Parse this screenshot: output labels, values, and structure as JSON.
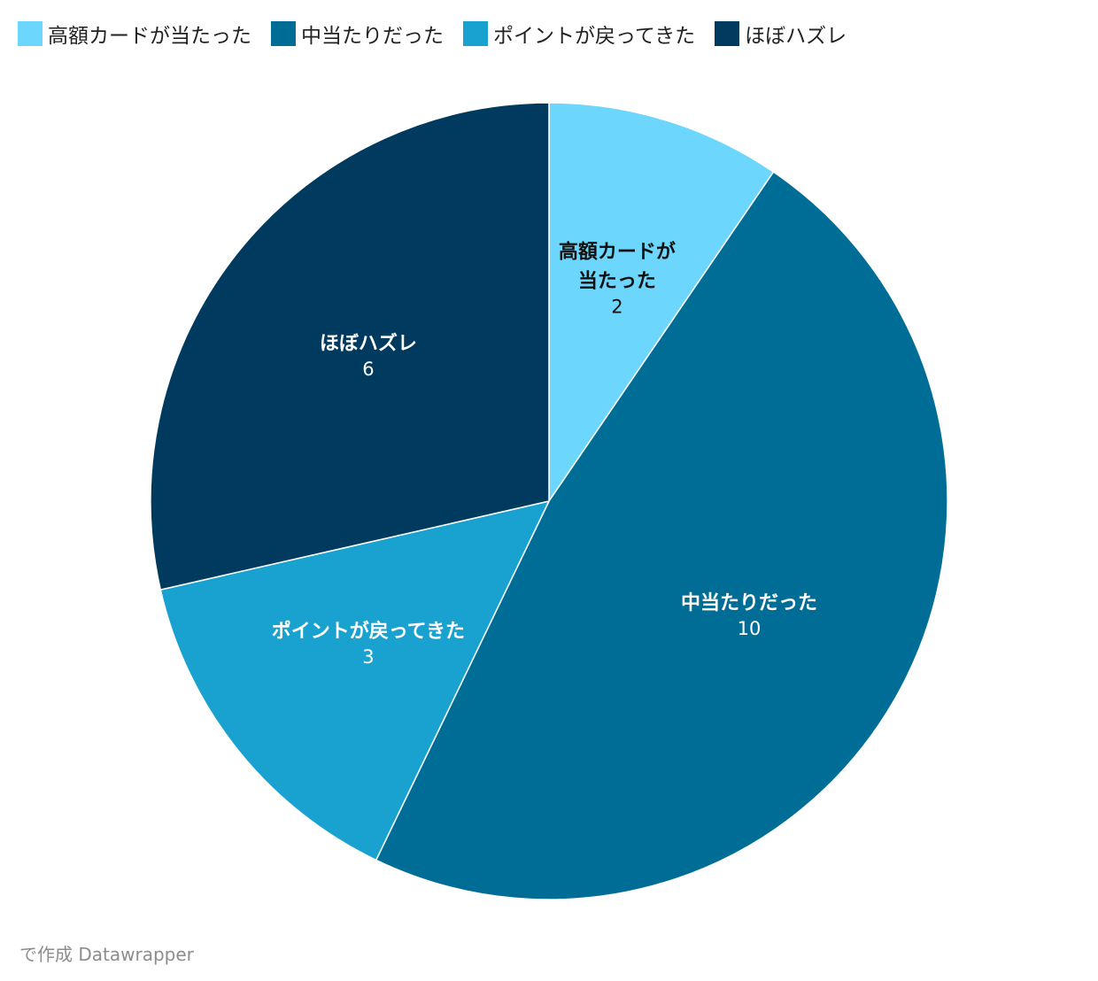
{
  "chart_data": {
    "type": "pie",
    "categories": [
      "高額カードが当たった",
      "中当たりだった",
      "ポイントが戻ってきた",
      "ほぼハズレ"
    ],
    "label_lines": [
      [
        "高額カードが",
        "当たった"
      ],
      [
        "中当たりだった"
      ],
      [
        "ポイントが戻ってきた"
      ],
      [
        "ほぼハズレ"
      ]
    ],
    "values": [
      2,
      10,
      3,
      6
    ],
    "colors": [
      "#6dd6fc",
      "#006d96",
      "#19a2cf",
      "#003b5f"
    ],
    "label_colors": [
      "#111111",
      "#ffffff",
      "#ffffff",
      "#ffffff"
    ],
    "start_angle_deg": 0,
    "direction": "clockwise",
    "legend_position": "top-left"
  },
  "legend": {
    "items": [
      {
        "label": "高額カードが当たった",
        "color": "#6dd6fc"
      },
      {
        "label": "中当たりだった",
        "color": "#006d96"
      },
      {
        "label": "ポイントが戻ってきた",
        "color": "#19a2cf"
      },
      {
        "label": "ほぼハズレ",
        "color": "#003b5f"
      }
    ]
  },
  "footer": {
    "credit": "で作成 Datawrapper"
  }
}
